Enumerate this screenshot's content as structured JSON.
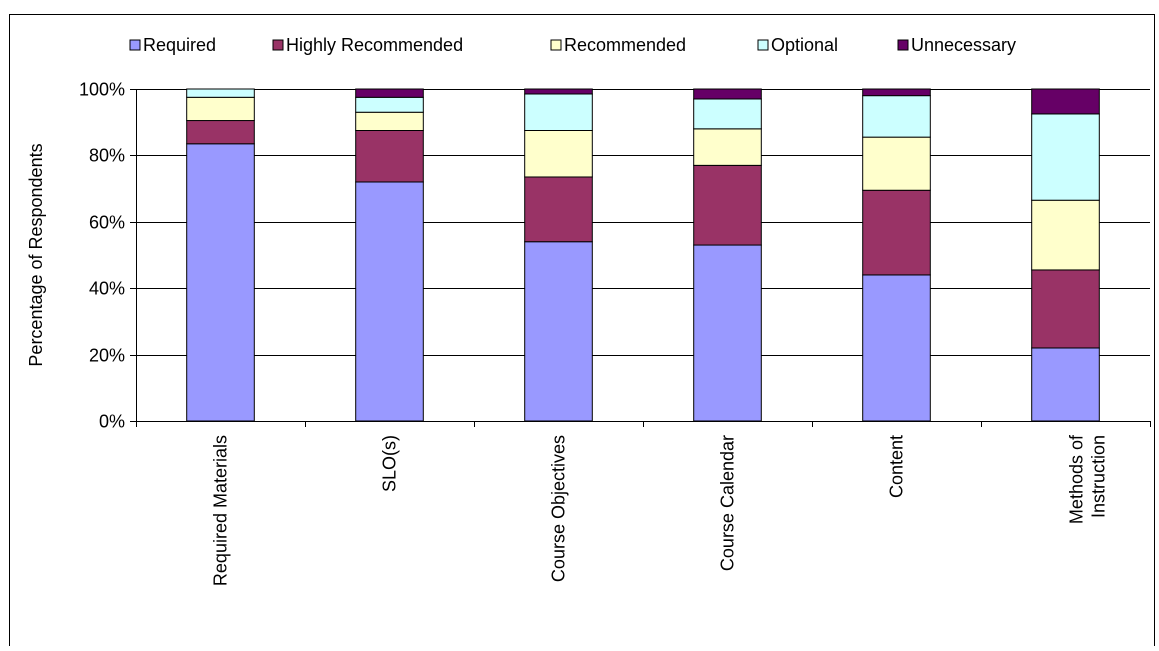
{
  "chart_data": {
    "type": "bar",
    "stacked": true,
    "percent_stacked": true,
    "categories": [
      "Required Materials",
      "SLO(s)",
      "Course Objectives",
      "Course Calendar",
      "Content",
      "Methods of\nInstruction"
    ],
    "series": [
      {
        "name": "Required",
        "color": "#9999ff",
        "values": [
          83.5,
          72,
          54,
          53,
          44,
          22
        ]
      },
      {
        "name": "Highly Recommended",
        "color": "#993366",
        "values": [
          7,
          15.5,
          19.5,
          24,
          25.5,
          23.5
        ]
      },
      {
        "name": "Recommended",
        "color": "#ffffcc",
        "values": [
          7,
          5.5,
          14,
          11,
          16,
          21
        ]
      },
      {
        "name": "Optional",
        "color": "#ccffff",
        "values": [
          2.5,
          4.5,
          11,
          9,
          12.5,
          26
        ]
      },
      {
        "name": "Unnecessary",
        "color": "#660066",
        "values": [
          0,
          2.5,
          1.5,
          3,
          2,
          7.5
        ]
      }
    ],
    "ylabel": "Percentage of Respondents",
    "xlabel": "",
    "ylim": [
      0,
      100
    ],
    "yticks": [
      "0%",
      "20%",
      "40%",
      "60%",
      "80%",
      "100%"
    ],
    "grid": true,
    "legend_position": "top"
  }
}
